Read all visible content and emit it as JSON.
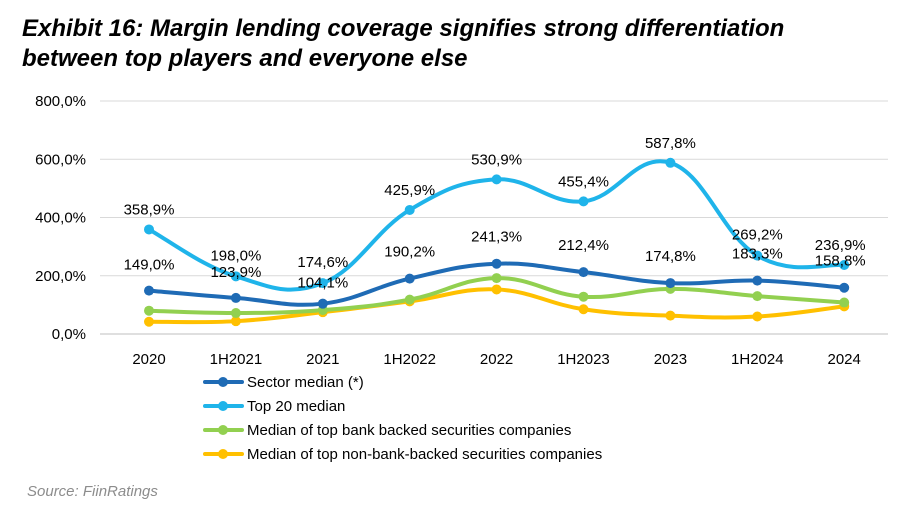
{
  "title": "Exhibit 16: Margin lending coverage signifies strong differentiation between top players and everyone else",
  "source": "Source: FiinRatings",
  "chart_data": {
    "type": "line",
    "title": "Exhibit 16: Margin lending coverage signifies strong differentiation between top players and everyone else",
    "categories": [
      "2020",
      "1H2021",
      "2021",
      "1H2022",
      "2022",
      "1H2023",
      "2023",
      "1H2024",
      "2024"
    ],
    "ylim": [
      0,
      800
    ],
    "yticks": [
      "0,0%",
      "200,0%",
      "400,0%",
      "600,0%",
      "800,0%"
    ],
    "series": [
      {
        "name": "Sector median (*)",
        "color": "#1f6bb5",
        "values": [
          149.0,
          123.9,
          104.1,
          190.2,
          241.3,
          212.4,
          174.8,
          183.3,
          158.8
        ],
        "labels": [
          "149,0%",
          "123,9%",
          "104,1%",
          "190,2%",
          "241,3%",
          "212,4%",
          "174,8%",
          "183,3%",
          "158,8%"
        ]
      },
      {
        "name": "Top 20 median",
        "color": "#1fb4ea",
        "values": [
          358.9,
          198.0,
          174.6,
          425.9,
          530.9,
          455.4,
          587.8,
          269.2,
          236.9
        ],
        "labels": [
          "358,9%",
          "198,0%",
          "174,6%",
          "425,9%",
          "530,9%",
          "455,4%",
          "587,8%",
          "269,2%",
          "236,9%"
        ]
      },
      {
        "name": "Median of top bank backed securities companies",
        "color": "#92d050",
        "values": [
          80,
          72,
          82,
          118,
          192,
          128,
          155,
          130,
          108
        ],
        "labels": []
      },
      {
        "name": "Median of top non-bank-backed securities companies",
        "color": "#ffc000",
        "values": [
          42,
          44,
          75,
          112,
          153,
          85,
          63,
          60,
          95
        ],
        "labels": []
      }
    ]
  }
}
